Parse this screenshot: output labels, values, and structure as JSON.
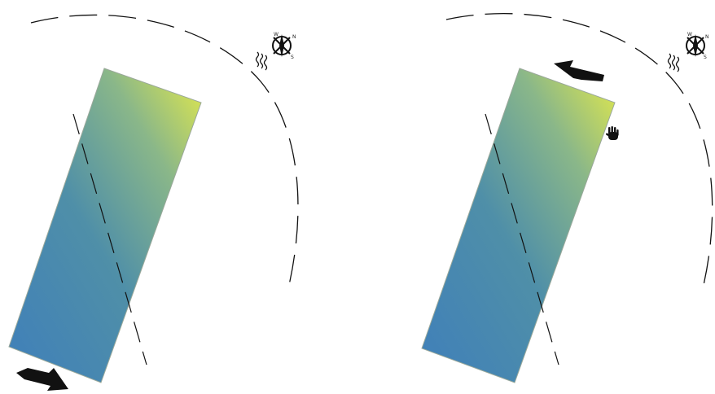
{
  "colors": {
    "gradient_start": "#3f7fba",
    "gradient_mid": "#5a9a9c",
    "gradient_end": "#e4ea4a",
    "panel_border": "#9aa89a",
    "arrow": "#111111",
    "dash": "#111111"
  },
  "panels": [
    {
      "name": "left-panel",
      "arrow_icon": "move-arrow-icon",
      "compass_icon": "compass-icon",
      "wind_icon": "wind-waves-icon"
    },
    {
      "name": "right-panel",
      "arrow_icon": "move-arrow-icon",
      "compass_icon": "compass-icon",
      "wind_icon": "wind-waves-icon",
      "cursor_icon": "grab-hand-icon"
    }
  ],
  "compass": {
    "label_n": "N",
    "label_s": "S",
    "label_w": "W"
  }
}
